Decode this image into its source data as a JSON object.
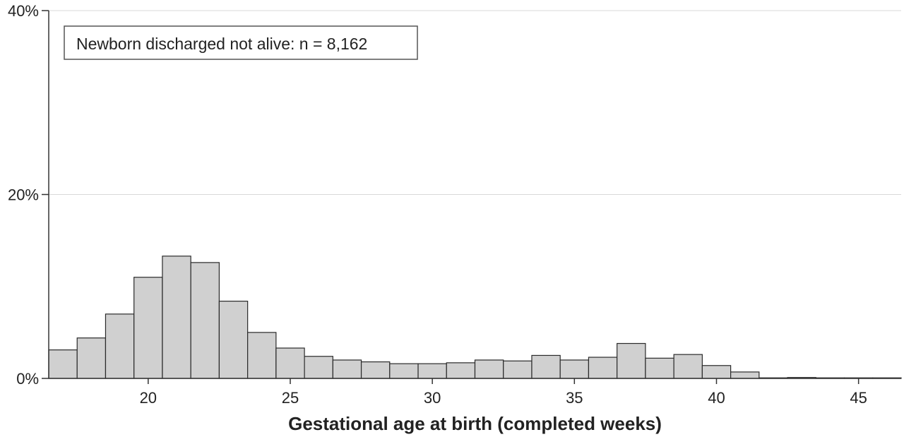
{
  "chart_data": {
    "type": "bar",
    "subtype": "histogram",
    "xlabel": "Gestational age at birth (completed weeks)",
    "ylabel": "",
    "annotation": "Newborn discharged not alive: n = 8,162",
    "annotation_placement": "top-left",
    "xlim": [
      17,
      47
    ],
    "ylim": [
      0,
      40
    ],
    "x_ticks": [
      20,
      25,
      30,
      35,
      40,
      45
    ],
    "x_tick_labels": [
      "20",
      "25",
      "30",
      "35",
      "40",
      "45"
    ],
    "y_ticks": [
      0,
      20,
      40
    ],
    "y_tick_labels": [
      "0%",
      "20%",
      "40%"
    ],
    "grid": "horizontal",
    "bin_width_weeks": 1,
    "bins": [
      {
        "week": 17,
        "percent": 3.1
      },
      {
        "week": 18,
        "percent": 4.4
      },
      {
        "week": 19,
        "percent": 7.0
      },
      {
        "week": 20,
        "percent": 11.0
      },
      {
        "week": 21,
        "percent": 13.3
      },
      {
        "week": 22,
        "percent": 12.6
      },
      {
        "week": 23,
        "percent": 8.4
      },
      {
        "week": 24,
        "percent": 5.0
      },
      {
        "week": 25,
        "percent": 3.3
      },
      {
        "week": 26,
        "percent": 2.4
      },
      {
        "week": 27,
        "percent": 2.0
      },
      {
        "week": 28,
        "percent": 1.8
      },
      {
        "week": 29,
        "percent": 1.6
      },
      {
        "week": 30,
        "percent": 1.6
      },
      {
        "week": 31,
        "percent": 1.7
      },
      {
        "week": 32,
        "percent": 2.0
      },
      {
        "week": 33,
        "percent": 1.9
      },
      {
        "week": 34,
        "percent": 2.5
      },
      {
        "week": 35,
        "percent": 2.0
      },
      {
        "week": 36,
        "percent": 2.3
      },
      {
        "week": 37,
        "percent": 3.8
      },
      {
        "week": 38,
        "percent": 2.2
      },
      {
        "week": 39,
        "percent": 2.6
      },
      {
        "week": 40,
        "percent": 1.4
      },
      {
        "week": 41,
        "percent": 0.7
      },
      {
        "week": 42,
        "percent": 0.0
      },
      {
        "week": 43,
        "percent": 0.1
      },
      {
        "week": 44,
        "percent": 0.05
      },
      {
        "week": 45,
        "percent": 0.03
      },
      {
        "week": 46,
        "percent": 0.02
      }
    ],
    "colors": {
      "bar_fill": "#d0d0d0",
      "bar_stroke": "#2a2a2a",
      "axis": "#333333",
      "grid": "#d9d9d9"
    }
  }
}
